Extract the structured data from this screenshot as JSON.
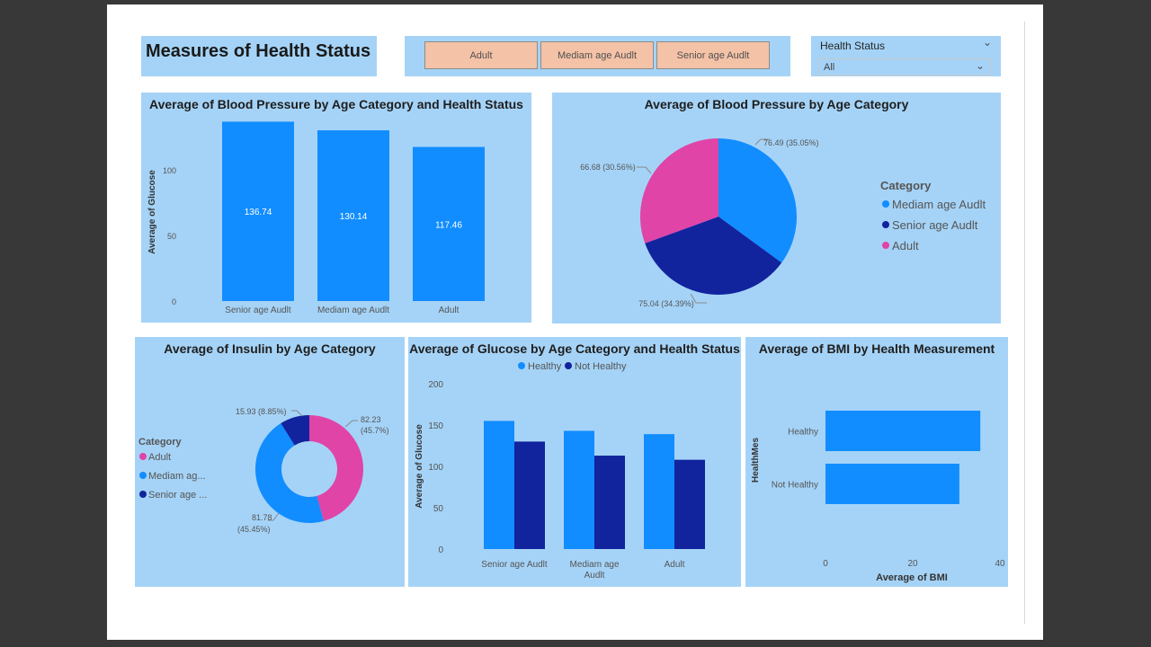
{
  "page": {
    "title": "Measures of Health Status",
    "slicer_buttons": [
      "Adult",
      "Mediam age Audlt",
      "Senior age Audlt"
    ],
    "filter": {
      "label": "Health Status",
      "value": "All"
    }
  },
  "colors": {
    "panel": "#a5d3f7",
    "blue": "#118dff",
    "navy": "#12239e",
    "pink": "#e044a7",
    "slicer": "#f4c2a7"
  },
  "chart_data": [
    {
      "id": "bp_bar",
      "type": "bar",
      "title": "Average of Blood Pressure by Age Category and Health Status",
      "ylabel": "Average of Glucose",
      "xlabel": "",
      "categories": [
        "Senior age Audlt",
        "Mediam age Audlt",
        "Adult"
      ],
      "values": [
        136.74,
        130.14,
        117.46
      ],
      "data_labels": [
        "136.74",
        "130.14",
        "117.46"
      ],
      "yticks": [
        "0",
        "50",
        "100"
      ],
      "ylim": [
        0,
        137
      ],
      "grid": false
    },
    {
      "id": "bp_pie",
      "type": "pie",
      "title": "Average of Blood Pressure by Age Category",
      "legend_title": "Category",
      "legend_position": "right",
      "slices": [
        {
          "name": "Mediam age Audlt",
          "value": 76.49,
          "label": "76.49 (35.05%)",
          "color": "#118dff"
        },
        {
          "name": "Senior age Audlt",
          "value": 75.04,
          "label": "75.04 (34.39%)",
          "color": "#12239e"
        },
        {
          "name": "Adult",
          "value": 66.68,
          "label": "66.68 (30.56%)",
          "color": "#e044a7"
        }
      ]
    },
    {
      "id": "insulin_donut",
      "type": "pie",
      "title": "Average of Insulin by Age Category",
      "legend_title": "Category",
      "legend_position": "left",
      "legend_items": [
        "Adult",
        "Mediam ag...",
        "Senior age ..."
      ],
      "slices": [
        {
          "name": "Adult",
          "value": 82.23,
          "label_value": "82.23",
          "label_pct": "(45.7%)",
          "color": "#e044a7"
        },
        {
          "name": "Mediam age Audlt",
          "value": 81.78,
          "label_value": "81.78",
          "label_pct": "(45.45%)",
          "color": "#118dff"
        },
        {
          "name": "Senior age Audlt",
          "value": 15.93,
          "label_value": "15.93 (8.85%)",
          "label_pct": "",
          "color": "#12239e"
        }
      ]
    },
    {
      "id": "glucose_bar",
      "type": "bar",
      "title": "Average of Glucose by Age Category and Health Status",
      "ylabel": "Average of Glucose",
      "xlabel": "",
      "categories": [
        "Senior age Audlt",
        "Mediam age Audlt",
        "Adult"
      ],
      "category_lines": [
        [
          "Senior age Audlt"
        ],
        [
          "Mediam age",
          "Audlt"
        ],
        [
          "Adult"
        ]
      ],
      "series": [
        {
          "name": "Healthy",
          "values": [
            155,
            143,
            139
          ],
          "color": "#118dff"
        },
        {
          "name": "Not Healthy",
          "values": [
            130,
            113,
            108
          ],
          "color": "#12239e"
        }
      ],
      "yticks": [
        "0",
        "50",
        "100",
        "150",
        "200"
      ],
      "ylim": [
        0,
        200
      ],
      "legend_position": "top",
      "grid": false
    },
    {
      "id": "bmi_bar",
      "type": "bar",
      "orientation": "horizontal",
      "title": "Average of BMI by Health Measurement",
      "ylabel": "HealthMes",
      "xlabel": "Average of BMI",
      "categories": [
        "Healthy",
        "Not Healthy"
      ],
      "values": [
        35.5,
        30.7
      ],
      "xticks": [
        "0",
        "20",
        "40"
      ],
      "xlim": [
        0,
        40
      ],
      "grid": false
    }
  ]
}
